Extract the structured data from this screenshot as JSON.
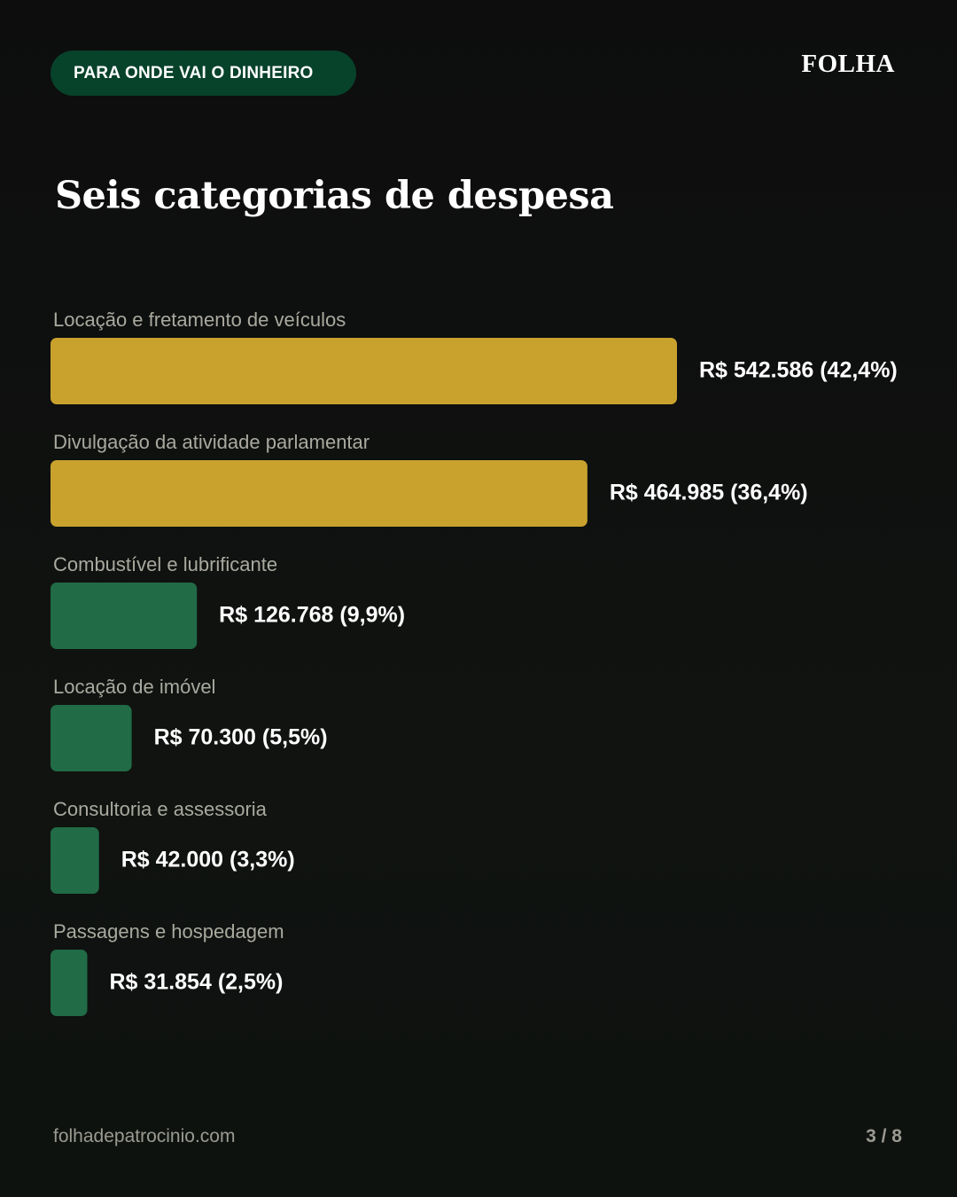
{
  "badge": "PARA ONDE VAI O DINHEIRO",
  "brand": "FOLHA",
  "title": "Seis categorias de despesa",
  "footer": {
    "site": "folhadepatrocinio.com",
    "page": "3 / 8"
  },
  "colors": {
    "gold": "#c9a22e",
    "green": "#216b47",
    "badge_bg": "#07422b",
    "category_text": "#a9a99f"
  },
  "chart_data": {
    "type": "bar",
    "orientation": "horizontal",
    "categories": [
      "Locação e fretamento de veículos",
      "Divulgação da atividade parlamentar",
      "Combustível e lubrificante",
      "Locação de imóvel",
      "Consultoria e assessoria",
      "Passagens e hospedagem"
    ],
    "values": [
      542586,
      464985,
      126768,
      70300,
      42000,
      31854
    ],
    "percents": [
      42.4,
      36.4,
      9.9,
      5.5,
      3.3,
      2.5
    ],
    "value_labels": [
      "R$ 542.586  (42,4%)",
      "R$ 464.985  (36,4%)",
      "R$ 126.768  (9,9%)",
      "R$ 70.300  (5,5%)",
      "R$ 42.000  (3,3%)",
      "R$ 31.854  (2,5%)"
    ],
    "bar_colors": [
      "gold",
      "gold",
      "green",
      "green",
      "green",
      "green"
    ],
    "title": "Seis categorias de despesa",
    "xlabel": "",
    "ylabel": ""
  }
}
